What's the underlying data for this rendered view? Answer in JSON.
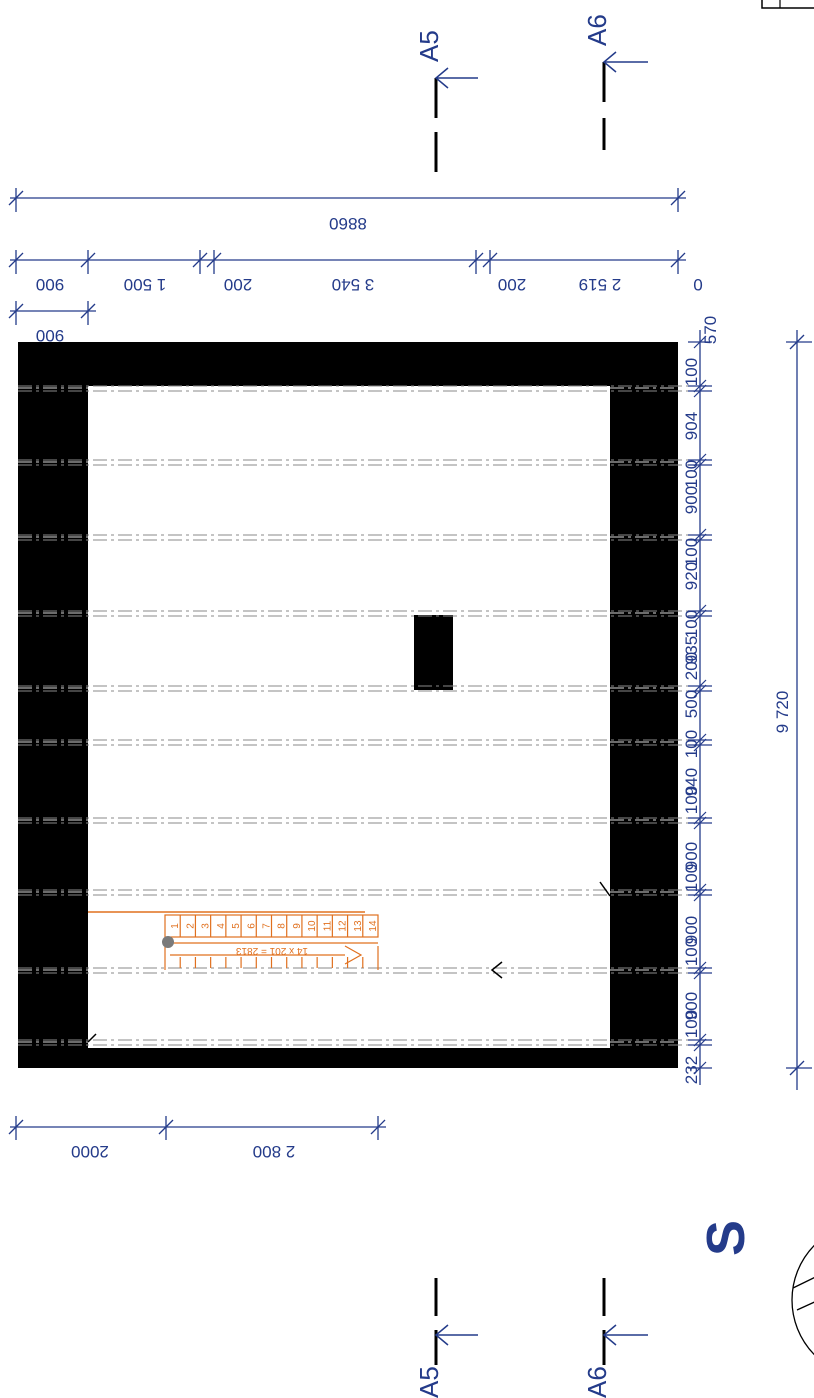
{
  "section_marks": {
    "a5_top": "A5",
    "a6_top": "A6",
    "a5_bottom": "A5",
    "a6_bottom": "A6"
  },
  "dims_top": {
    "overall": "8860",
    "left_900_a": "900",
    "left_900_b": "900",
    "d_1500": "1 500",
    "d_200_a": "200",
    "d_3540": "3 540",
    "d_200_b": "200",
    "d_2519": "2 519",
    "d_0": "0",
    "d_570": "570"
  },
  "dims_right": [
    "100",
    "904",
    "100",
    "900",
    "100",
    "920",
    "100",
    "935",
    "200",
    "500",
    "100",
    "940",
    "100",
    "900",
    "100",
    "900",
    "100",
    "900",
    "100",
    "232"
  ],
  "dims_bottom": {
    "d_2000": "2000",
    "d_2800": "2 800"
  },
  "dims_far_right": {
    "total": "9 720"
  },
  "stair": {
    "steps": [
      "1",
      "2",
      "3",
      "4",
      "5",
      "6",
      "7",
      "8",
      "9",
      "10",
      "11",
      "12",
      "13",
      "14"
    ],
    "formula": "14 x 201 = 2813"
  },
  "compass": {
    "letter": "S"
  },
  "colors": {
    "dimension": "#243b8a",
    "wall": "#000000",
    "stair": "#e0701e"
  }
}
